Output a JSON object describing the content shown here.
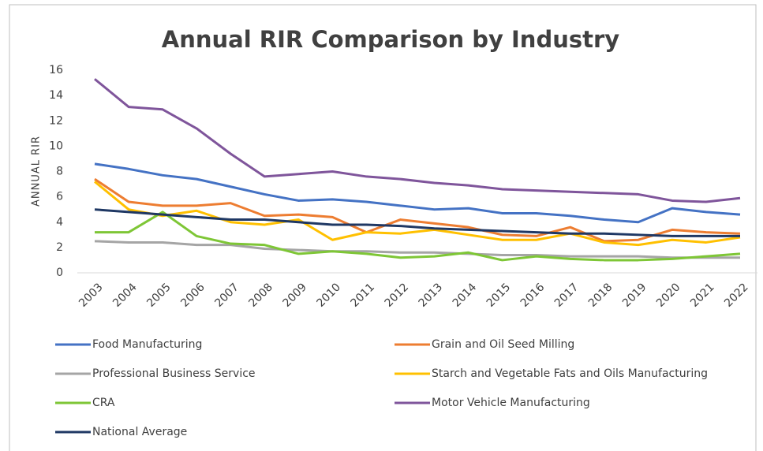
{
  "chart_data": {
    "type": "line",
    "title": "Annual RIR Comparison by Industry",
    "y_label": "ANNUAL RIR",
    "categories": [
      "2003",
      "2004",
      "2005",
      "2006",
      "2007",
      "2008",
      "2009",
      "2010",
      "2011",
      "2012",
      "2013",
      "2014",
      "2015",
      "2016",
      "2017",
      "2018",
      "2019",
      "2020",
      "2021",
      "2022"
    ],
    "ylim": [
      0,
      16
    ],
    "yticks": [
      0,
      2,
      4,
      6,
      8,
      10,
      12,
      14,
      16
    ],
    "grid": false,
    "series": [
      {
        "name": "Food Manufacturing",
        "color": "#4472c4",
        "values": [
          8.6,
          8.2,
          7.7,
          7.4,
          6.8,
          6.2,
          5.7,
          5.8,
          5.6,
          5.3,
          5.0,
          5.1,
          4.7,
          4.7,
          4.5,
          4.2,
          4.0,
          5.1,
          4.8,
          4.6
        ]
      },
      {
        "name": "Grain and Oil Seed Milling",
        "color": "#ed7d31",
        "values": [
          7.4,
          5.6,
          5.3,
          5.3,
          5.5,
          4.5,
          4.6,
          4.4,
          3.2,
          4.2,
          3.9,
          3.6,
          3.0,
          2.9,
          3.6,
          2.5,
          2.6,
          3.4,
          3.2,
          3.1
        ]
      },
      {
        "name": "Professional Business Service",
        "color": "#a5a5a5",
        "values": [
          2.5,
          2.4,
          2.4,
          2.2,
          2.2,
          1.9,
          1.8,
          1.7,
          1.7,
          1.6,
          1.6,
          1.5,
          1.4,
          1.4,
          1.3,
          1.3,
          1.3,
          1.2,
          1.2,
          1.2
        ]
      },
      {
        "name": "Starch and Vegetable Fats and Oils Manufacturing",
        "color": "#ffc000",
        "values": [
          7.2,
          5.0,
          4.5,
          4.9,
          4.0,
          3.8,
          4.2,
          2.6,
          3.2,
          3.1,
          3.4,
          3.0,
          2.6,
          2.6,
          3.1,
          2.4,
          2.2,
          2.6,
          2.4,
          2.8
        ]
      },
      {
        "name": "CRA",
        "color": "#7ec636",
        "values": [
          3.2,
          3.2,
          4.8,
          2.9,
          2.3,
          2.2,
          1.5,
          1.7,
          1.5,
          1.2,
          1.3,
          1.6,
          1.0,
          1.3,
          1.1,
          1.0,
          1.0,
          1.1,
          1.3,
          1.5
        ]
      },
      {
        "name": "Motor Vehicle Manufacturing",
        "color": "#7f559b",
        "values": [
          15.3,
          13.1,
          12.9,
          11.4,
          9.4,
          7.6,
          7.8,
          8.0,
          7.6,
          7.4,
          7.1,
          6.9,
          6.6,
          6.5,
          6.4,
          6.3,
          6.2,
          5.7,
          5.6,
          5.9
        ]
      },
      {
        "name": "National Average",
        "color": "#1f3864",
        "values": [
          5.0,
          4.8,
          4.6,
          4.4,
          4.2,
          4.2,
          4.0,
          3.8,
          3.8,
          3.7,
          3.5,
          3.4,
          3.3,
          3.2,
          3.1,
          3.1,
          3.0,
          2.9,
          2.9,
          2.9
        ]
      }
    ]
  }
}
